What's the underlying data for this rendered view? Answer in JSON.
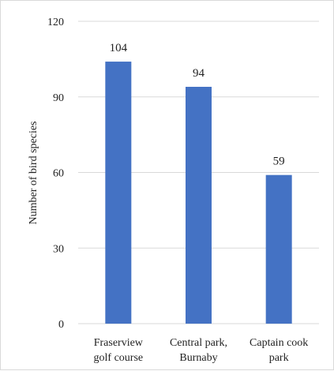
{
  "chart_data": {
    "type": "bar",
    "categories": [
      [
        "Fraserview",
        "golf course"
      ],
      [
        "Central park,",
        "Burnaby"
      ],
      [
        "Captain cook",
        "park"
      ]
    ],
    "values": [
      104,
      94,
      59
    ],
    "data_labels": [
      "104",
      "94",
      "59"
    ],
    "xlabel": "",
    "ylabel": "Number of bird species",
    "ylim": [
      0,
      120
    ],
    "yticks": [
      0,
      30,
      60,
      90,
      120
    ],
    "grid": true,
    "legend": "none",
    "bar_color": "#4472c4",
    "grid_color": "#d9d9d9"
  }
}
